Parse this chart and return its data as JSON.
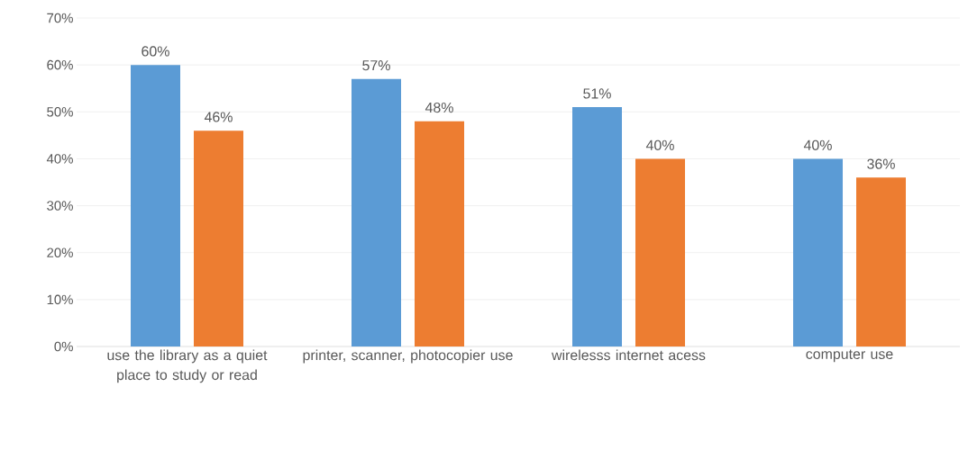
{
  "chart_data": {
    "type": "bar",
    "categories": [
      "use the library as a quiet place to study or read",
      "printer, scanner, photocopier use",
      "wirelesss internet acess",
      "computer use"
    ],
    "series": [
      {
        "color": "#5b9bd5",
        "values": [
          60,
          57,
          51,
          40
        ],
        "value_labels": [
          "60%",
          "57%",
          "51%",
          "40%"
        ]
      },
      {
        "color": "#ed7d31",
        "values": [
          46,
          48,
          40,
          36
        ],
        "value_labels": [
          "46%",
          "48%",
          "40%",
          "36%"
        ]
      }
    ],
    "ylim": [
      0,
      70
    ],
    "yticks": [
      {
        "value": 0,
        "label": "0%"
      },
      {
        "value": 10,
        "label": "10%"
      },
      {
        "value": 20,
        "label": "20%"
      },
      {
        "value": 30,
        "label": "30%"
      },
      {
        "value": 40,
        "label": "40%"
      },
      {
        "value": 50,
        "label": "50%"
      },
      {
        "value": 60,
        "label": "60%"
      },
      {
        "value": 70,
        "label": "70%"
      }
    ],
    "grid": "y"
  }
}
